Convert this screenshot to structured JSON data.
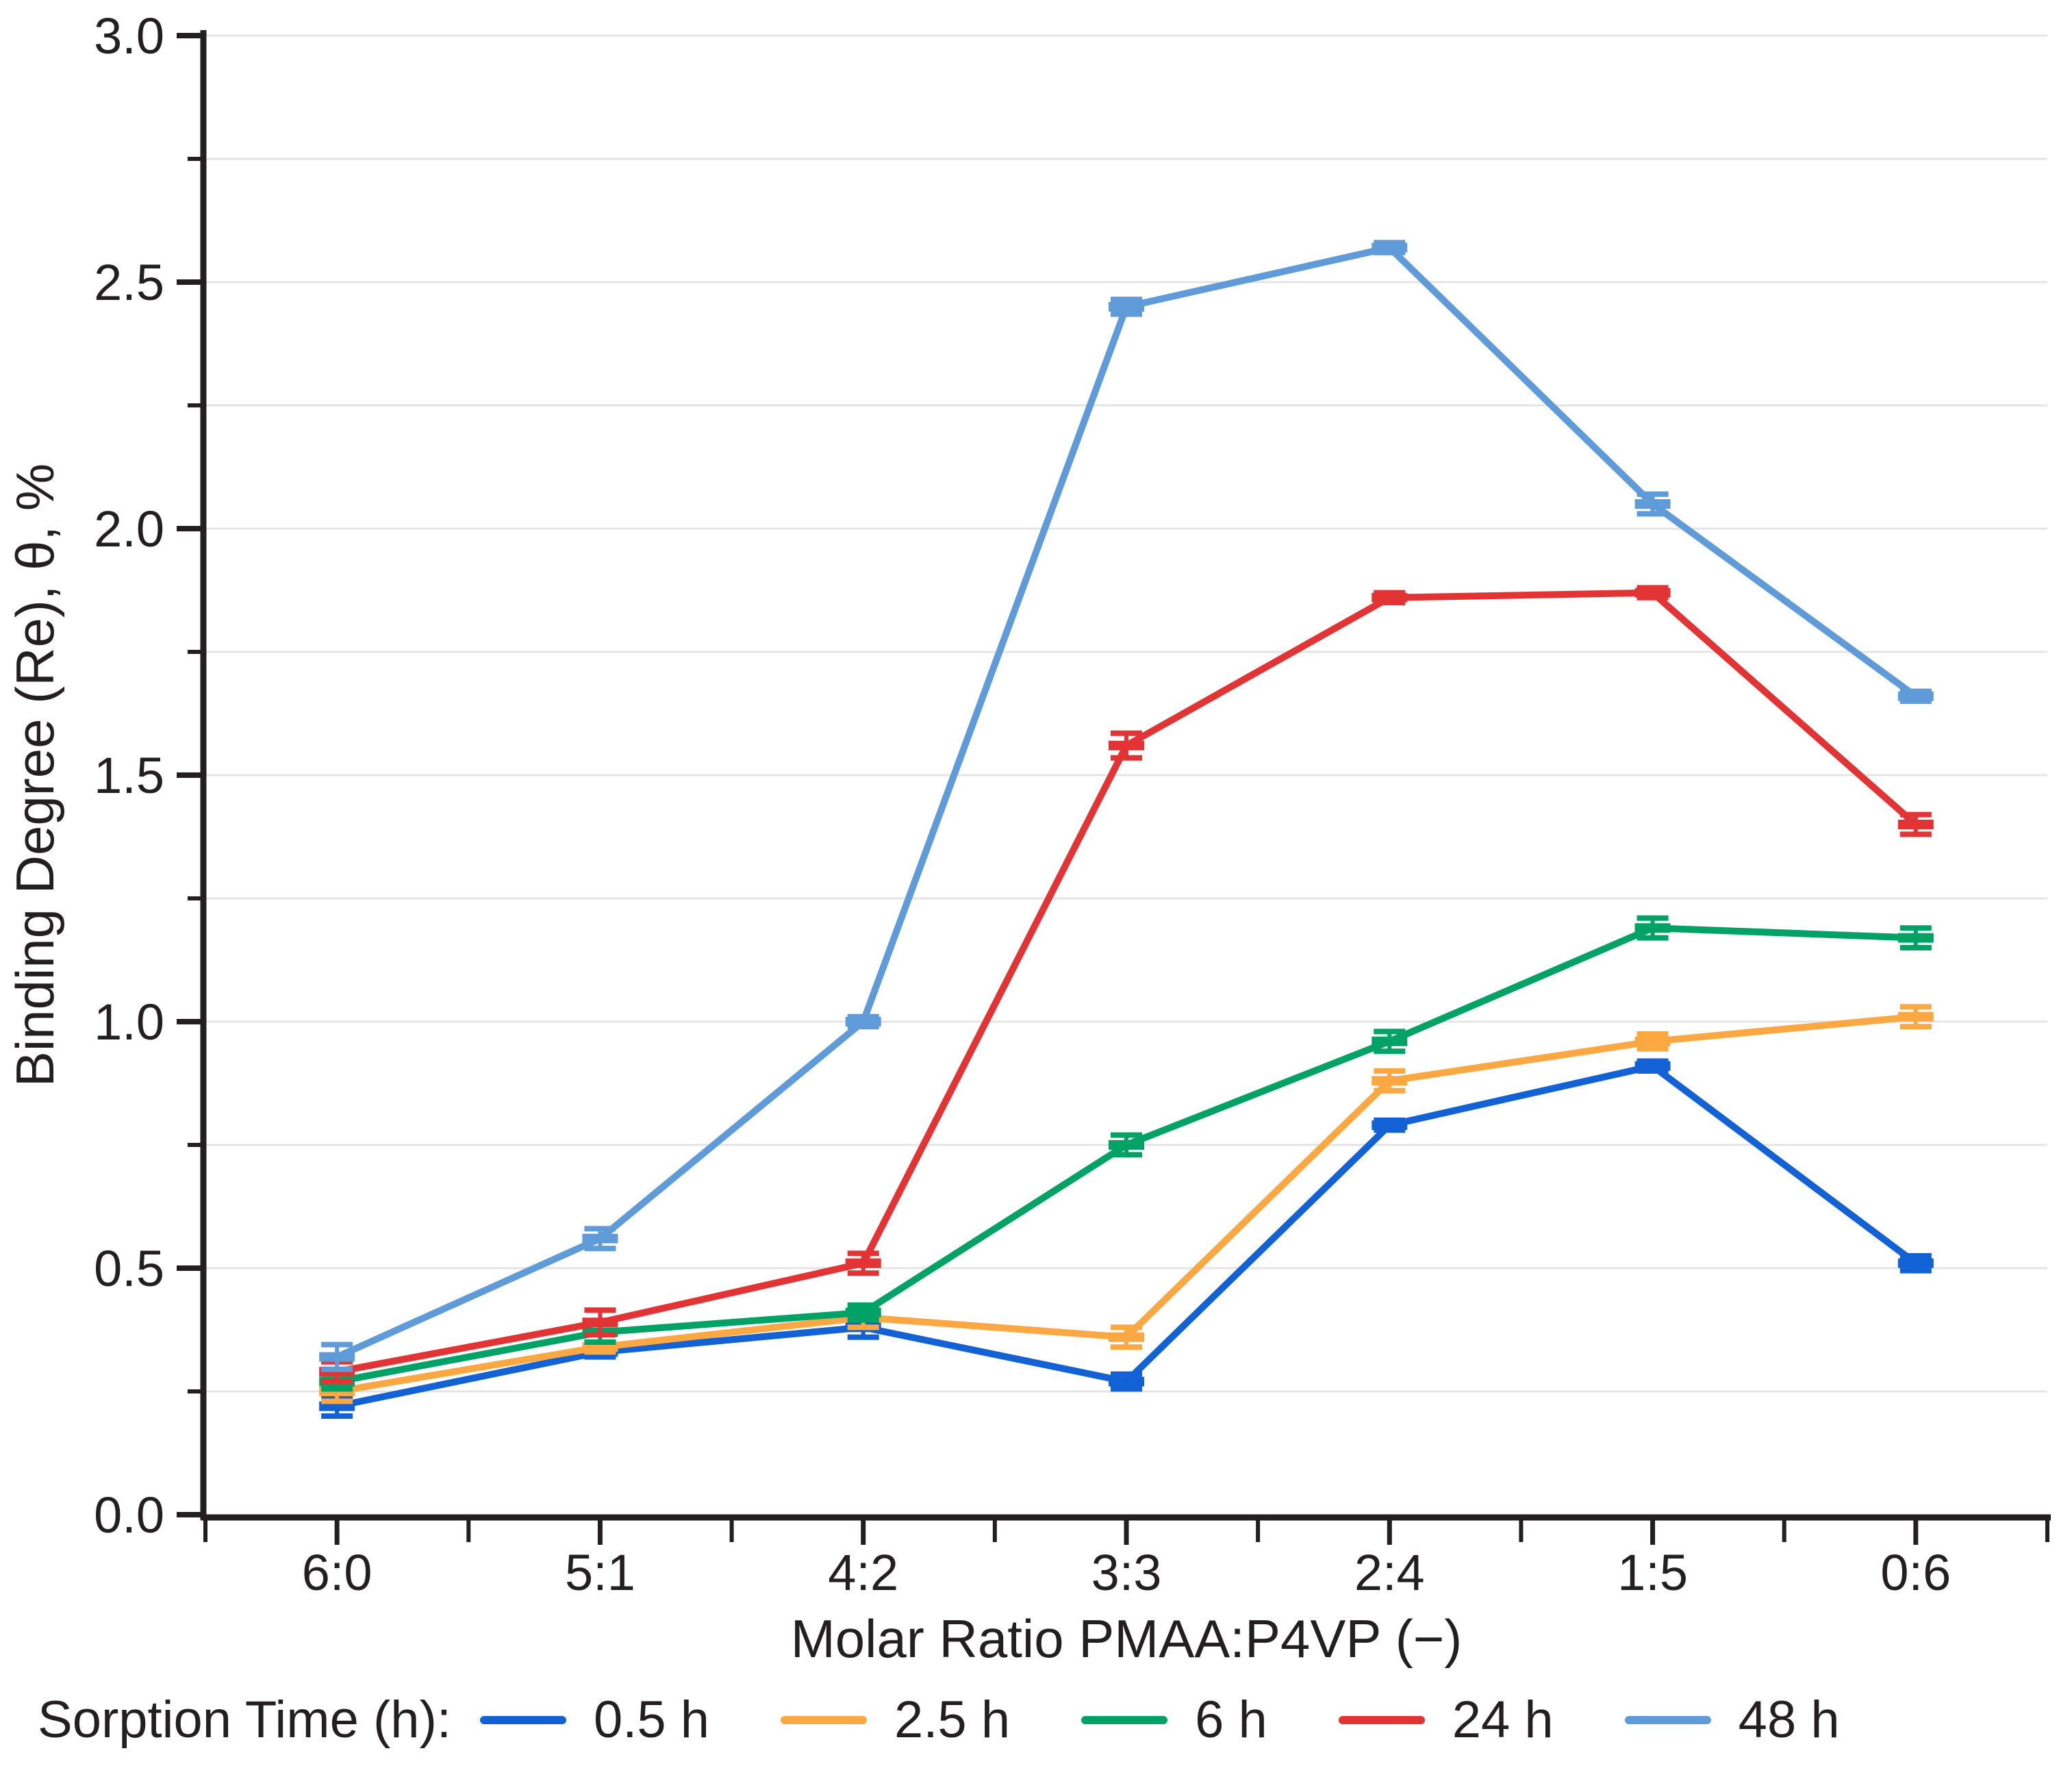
{
  "figure": {
    "background": "#ffffff",
    "axis_color": "#231f20",
    "grid_color": "#e4e4e4"
  },
  "chart_data": {
    "type": "line",
    "title": "",
    "xlabel": "Molar Ratio PMAA:P4VP (−)",
    "ylabel": "Binding Degree (Re), θ, %",
    "legend_title": "Sorption Time (h):",
    "legend_position": "bottom",
    "grid": "horizontal",
    "ylim": [
      0.0,
      3.0
    ],
    "y_major_ticks": [
      "0.0",
      "0.5",
      "1.0",
      "1.5",
      "2.0",
      "2.5",
      "3.0"
    ],
    "y_minor_tick_step": 0.25,
    "categories": [
      "6:0",
      "5:1",
      "4:2",
      "3:3",
      "2:4",
      "1:5",
      "0:6"
    ],
    "series": [
      {
        "name": "0.5 h",
        "color": "#1262d6",
        "values": [
          0.22,
          0.33,
          0.38,
          0.27,
          0.79,
          0.91,
          0.51
        ],
        "errors": [
          0.02,
          0.01,
          0.02,
          0.015,
          0.01,
          0.01,
          0.015
        ]
      },
      {
        "name": "2.5 h",
        "color": "#fba843",
        "values": [
          0.25,
          0.34,
          0.4,
          0.36,
          0.88,
          0.96,
          1.01
        ],
        "errors": [
          0.02,
          0.01,
          0.02,
          0.02,
          0.02,
          0.015,
          0.02
        ]
      },
      {
        "name": "6 h",
        "color": "#00a265",
        "values": [
          0.27,
          0.37,
          0.41,
          0.75,
          0.96,
          1.19,
          1.17
        ],
        "errors": [
          0.015,
          0.02,
          0.015,
          0.02,
          0.02,
          0.02,
          0.02
        ]
      },
      {
        "name": "24 h",
        "color": "#e23434",
        "values": [
          0.29,
          0.39,
          0.51,
          1.56,
          1.86,
          1.87,
          1.4
        ],
        "errors": [
          0.02,
          0.025,
          0.02,
          0.025,
          0.01,
          0.01,
          0.02
        ]
      },
      {
        "name": "48 h",
        "color": "#5f9bd9",
        "values": [
          0.32,
          0.56,
          1.0,
          2.45,
          2.57,
          2.05,
          1.66
        ],
        "errors": [
          0.025,
          0.02,
          0.01,
          0.015,
          0.01,
          0.02,
          0.01
        ]
      }
    ]
  }
}
